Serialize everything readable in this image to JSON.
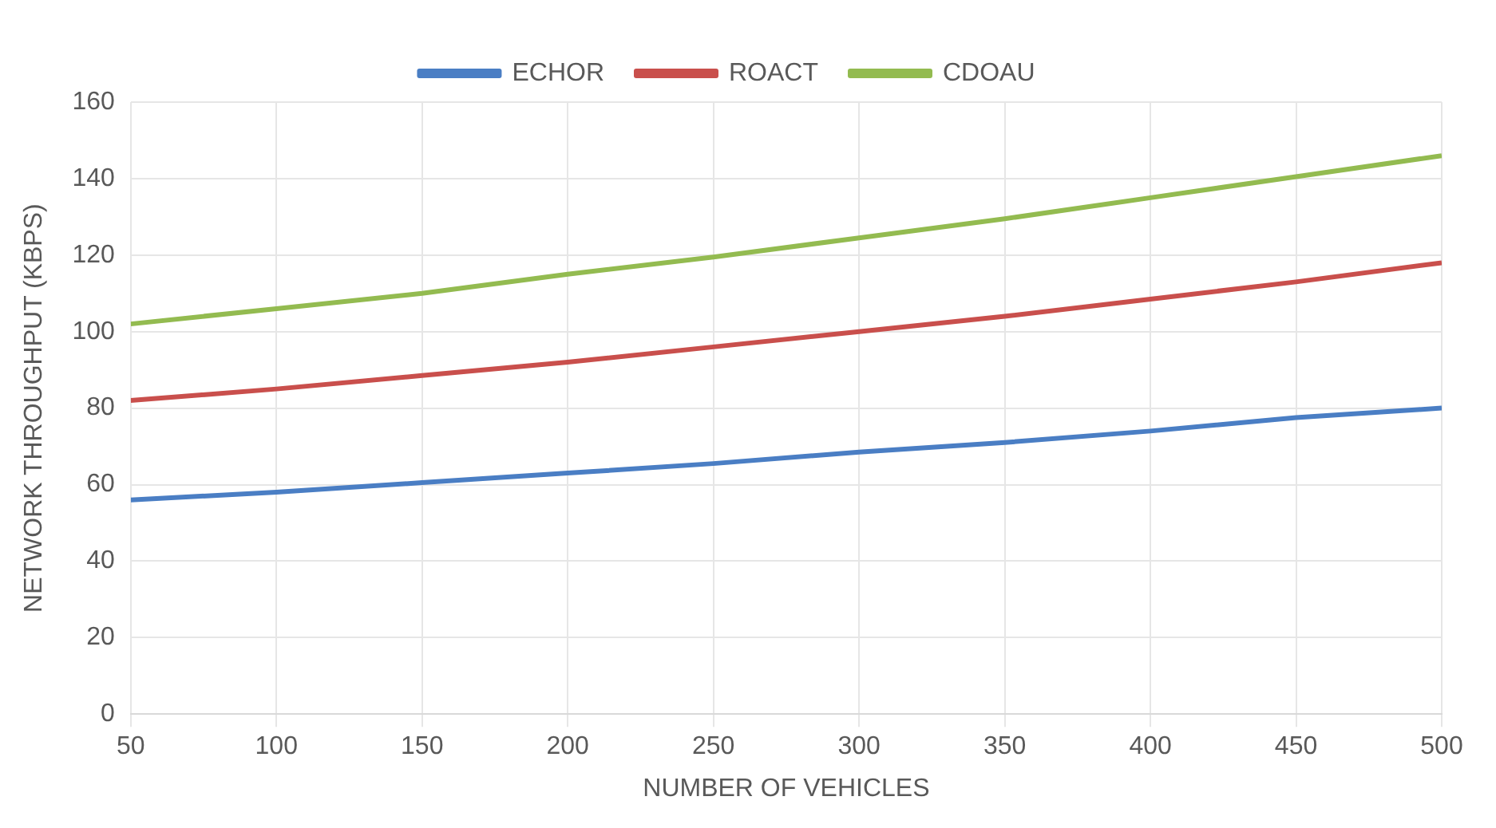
{
  "chart_data": {
    "type": "line",
    "xlabel": "NUMBER OF VEHICLES",
    "ylabel": "NETWORK THROUGHPUT (KBPS)",
    "x": [
      50,
      100,
      150,
      200,
      250,
      300,
      350,
      400,
      450,
      500
    ],
    "series": [
      {
        "name": "ECHOR",
        "color": "#4a7ec4",
        "values": [
          56,
          58,
          60.5,
          63,
          65.5,
          68.5,
          71,
          74,
          77.5,
          80
        ]
      },
      {
        "name": "ROACT",
        "color": "#c94f4c",
        "values": [
          82,
          85,
          88.5,
          92,
          96,
          100,
          104,
          108.5,
          113,
          118
        ]
      },
      {
        "name": "CDOAU",
        "color": "#93bb50",
        "values": [
          102,
          106,
          110,
          115,
          119.5,
          124.5,
          129.5,
          135,
          140.5,
          146
        ]
      }
    ],
    "xlim": [
      50,
      500
    ],
    "xticks": [
      50,
      100,
      150,
      200,
      250,
      300,
      350,
      400,
      450,
      500
    ],
    "ylim": [
      0,
      160
    ],
    "yticks": [
      0,
      20,
      40,
      60,
      80,
      100,
      120,
      140,
      160
    ],
    "grid": true,
    "legend": "top",
    "marker": "none",
    "line_style": "solid"
  }
}
